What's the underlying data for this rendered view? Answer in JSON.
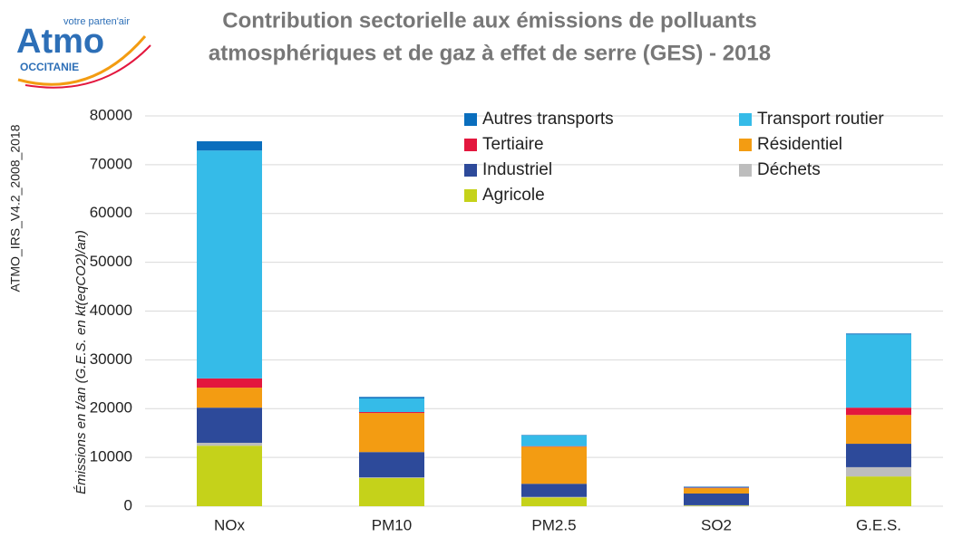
{
  "logo": {
    "name": "Atmo",
    "tagline": "votre parten'air",
    "region": "OCCITANIE"
  },
  "source": "ATMO_IRS_V4.2_2008_2018",
  "chart_data": {
    "type": "stacked_bar",
    "title": [
      "Contribution sectorielle aux émissions de polluants",
      "atmosphériques et de gaz à effet de serre (GES) - 2018"
    ],
    "y_label": "Émissions en t/an (G.E.S. en kt(eqCO2)/an)",
    "categories": [
      "NOx",
      "PM10",
      "PM2.5",
      "SO2",
      "G.E.S."
    ],
    "ylim": [
      0,
      80000
    ],
    "yticks": [
      0,
      10000,
      20000,
      30000,
      40000,
      50000,
      60000,
      70000,
      80000
    ],
    "grid": true,
    "legend": "top-right",
    "series": [
      {
        "name": "Autres transports",
        "color": "#0a6ebd",
        "values": [
          1900,
          300,
          100,
          100,
          200
        ]
      },
      {
        "name": "Transport routier",
        "color": "#35bbe8",
        "values": [
          46700,
          2800,
          2200,
          100,
          15000
        ]
      },
      {
        "name": "Tertiaire",
        "color": "#e3173e",
        "values": [
          1900,
          200,
          100,
          100,
          1500
        ]
      },
      {
        "name": "Résidentiel",
        "color": "#f39c12",
        "values": [
          4100,
          8000,
          7600,
          1100,
          5900
        ]
      },
      {
        "name": "Industriel",
        "color": "#2d4a9a",
        "values": [
          7200,
          5200,
          2700,
          2400,
          4800
        ]
      },
      {
        "name": "Déchets",
        "color": "#bdbdbd",
        "values": [
          600,
          100,
          100,
          100,
          1900
        ]
      },
      {
        "name": "Agricole",
        "color": "#c5d21a",
        "values": [
          12400,
          5800,
          1800,
          100,
          6100
        ]
      }
    ]
  }
}
